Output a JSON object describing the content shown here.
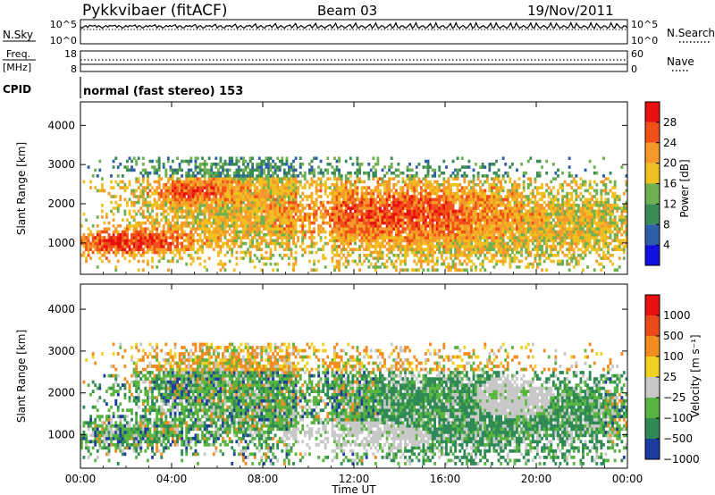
{
  "header": {
    "station": "Pykkvibaer (fitACF)",
    "beam": "Beam 03",
    "date": "19/Nov/2011"
  },
  "noise_panel": {
    "left_label": "N.Sky",
    "left_ticks": [
      "10^5",
      "10^0"
    ],
    "right_ticks": [
      "10^5",
      "10^0"
    ],
    "right_label": "N.Search",
    "right_label_style": "dotted"
  },
  "freq_panel": {
    "left_label_top": "Freq.",
    "left_label_bottom": "[MHz]",
    "left_ticks": [
      "18",
      "8"
    ],
    "right_ticks": [
      "60",
      "0"
    ],
    "right_label": "Nave",
    "right_label_style": "dotted"
  },
  "cpid_panel": {
    "label": "CPID",
    "text": "normal (fast stereo) 153"
  },
  "time_axis": {
    "ticks": [
      "00:00",
      "04:00",
      "08:00",
      "12:00",
      "16:00",
      "20:00",
      "00:00"
    ],
    "label": "Time UT"
  },
  "chart_data": [
    {
      "type": "heatmap",
      "name": "power",
      "ylabel": "Slant Range [km]",
      "yticks": [
        "1000",
        "2000",
        "3000",
        "4000"
      ],
      "ylim": [
        200,
        4600
      ],
      "x_range_hours": [
        0,
        24
      ],
      "colorbar": {
        "label": "Power [dB]",
        "ticks": [
          "4",
          "8",
          "12",
          "16",
          "20",
          "24",
          "28"
        ],
        "colors": [
          "#1010e0",
          "#2c5fa8",
          "#3a8a55",
          "#6fb150",
          "#f0c020",
          "#f59a2a",
          "#f05018",
          "#e81010"
        ]
      }
    },
    {
      "type": "heatmap",
      "name": "velocity",
      "ylabel": "Slant Range [km]",
      "yticks": [
        "1000",
        "2000",
        "3000",
        "4000"
      ],
      "ylim": [
        200,
        4600
      ],
      "x_range_hours": [
        0,
        24
      ],
      "colorbar": {
        "label": "Velocity [m s⁻¹]",
        "ticks": [
          "1000",
          "500",
          "100",
          "25",
          "−25",
          "−100",
          "−500",
          "−1000"
        ],
        "colors": [
          "#1e3ca0",
          "#2f8a55",
          "#5ab440",
          "#c8c8c8",
          "#f0d020",
          "#f08c20",
          "#ea4a18",
          "#e81010"
        ]
      }
    }
  ]
}
